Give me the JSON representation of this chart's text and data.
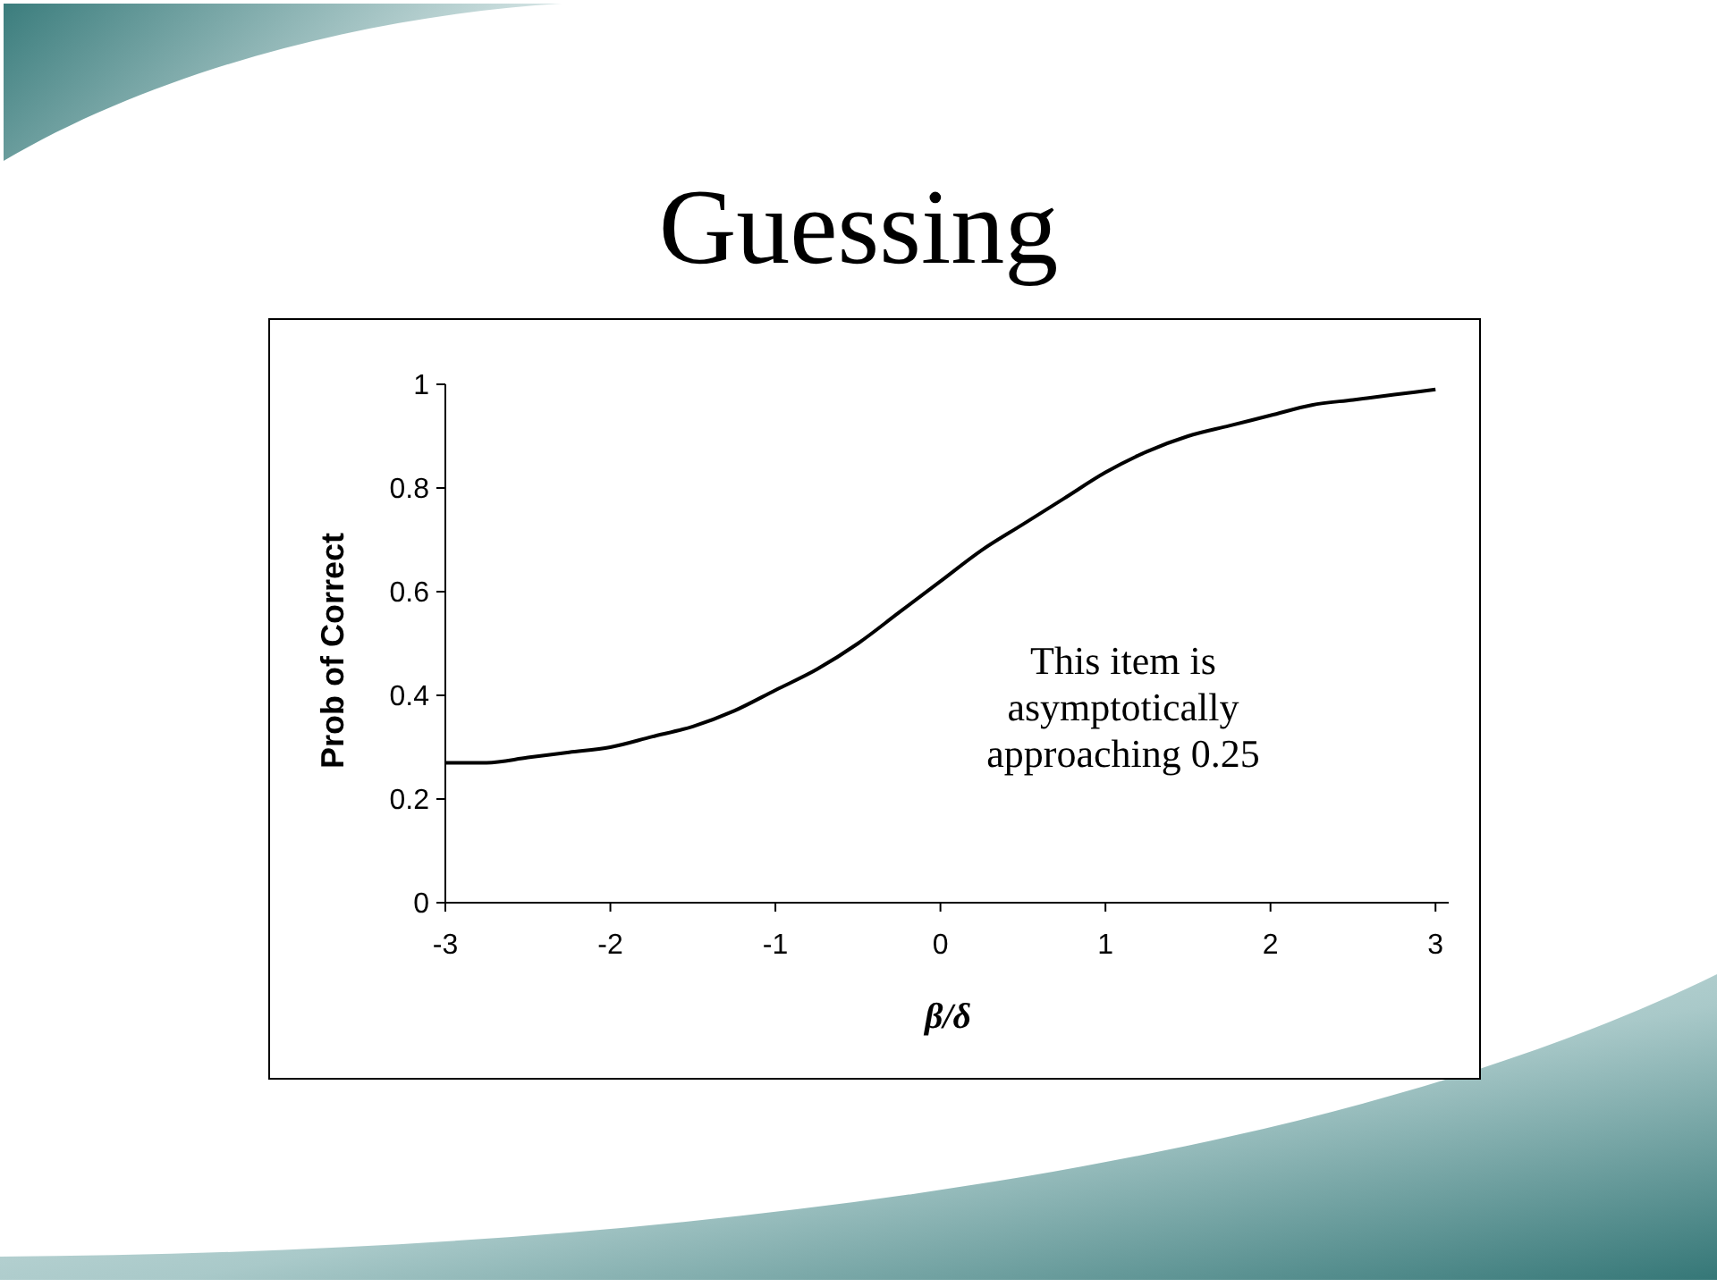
{
  "chart_data": {
    "type": "line",
    "title": "Guessing",
    "xlabel": "β/δ",
    "ylabel": "Prob of Correct",
    "annotations": [
      "This item is asymptotically approaching 0.25"
    ],
    "x": [
      -3,
      -2.75,
      -2.5,
      -2.25,
      -2,
      -1.75,
      -1.5,
      -1.25,
      -1,
      -0.75,
      -0.5,
      -0.25,
      0,
      0.25,
      0.5,
      0.75,
      1,
      1.25,
      1.5,
      1.75,
      2,
      2.25,
      2.5,
      2.75,
      3
    ],
    "series": [
      {
        "color": "#000000",
        "values": [
          0.27,
          0.27,
          0.28,
          0.29,
          0.3,
          0.32,
          0.34,
          0.37,
          0.41,
          0.45,
          0.5,
          0.56,
          0.62,
          0.68,
          0.73,
          0.78,
          0.83,
          0.87,
          0.9,
          0.92,
          0.94,
          0.96,
          0.97,
          0.98,
          0.99
        ]
      }
    ],
    "xlim": [
      -3,
      3.08
    ],
    "ylim": [
      0,
      1
    ],
    "xticks": [
      -3,
      -2,
      -1,
      0,
      1,
      2,
      3
    ],
    "yticks": [
      0,
      0.2,
      0.4,
      0.6,
      0.8,
      1
    ],
    "grid": false,
    "marker": "none",
    "line_style": "solid"
  }
}
